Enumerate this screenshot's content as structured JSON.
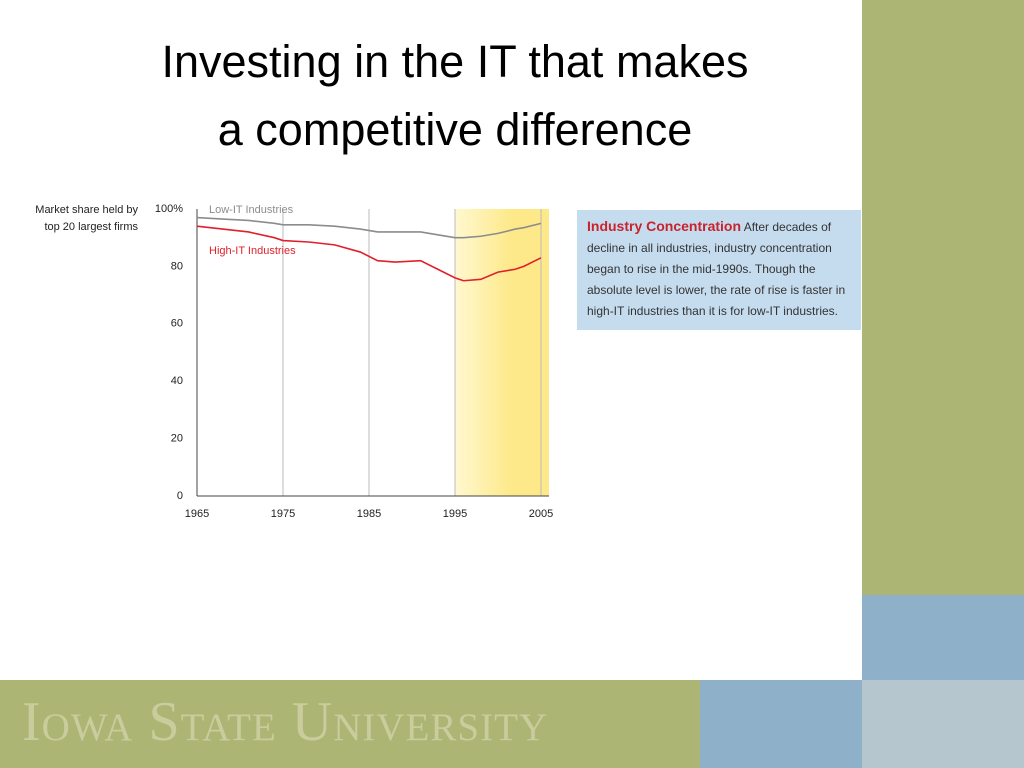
{
  "slide": {
    "title": [
      "Investing in the IT that makes",
      "a competitive difference"
    ],
    "footer": "Iowa State University",
    "note": {
      "heading": "Industry Concentration",
      "body": "After decades of decline in all industries, industry concentration began to rise in the mid-1990s. Though the absolute level is lower, the rate of rise is faster in high-IT industries than it is for low-IT industries."
    }
  },
  "chart_data": {
    "type": "line",
    "ylabel": [
      "Market share held by",
      "top 20 largest firms"
    ],
    "x": [
      1965,
      1968,
      1971,
      1974,
      1975,
      1978,
      1981,
      1984,
      1986,
      1988,
      1991,
      1993,
      1995,
      1996,
      1998,
      2000,
      2002,
      2003,
      2005
    ],
    "series": [
      {
        "name": "Low-IT Industries",
        "color": "#8c8c8c",
        "values": [
          97,
          96.5,
          96,
          95,
          94.5,
          94.5,
          94,
          93,
          92,
          92,
          92,
          91,
          90,
          90,
          90.5,
          91.5,
          93,
          93.5,
          95
        ]
      },
      {
        "name": "High-IT Industries",
        "color": "#e0202c",
        "values": [
          94,
          93,
          92,
          90,
          89,
          88.5,
          87.5,
          85,
          82,
          81.5,
          82,
          79,
          76,
          75,
          75.5,
          78,
          79,
          80,
          83
        ]
      }
    ],
    "xlim": [
      1965,
      2005
    ],
    "xticks": [
      1965,
      1975,
      1985,
      1995,
      2005
    ],
    "ylim": [
      0,
      100
    ],
    "yticks": [
      0,
      20,
      40,
      60,
      80,
      {
        "value": 100,
        "label": "100%"
      }
    ],
    "grid": "x",
    "highlight_x": [
      1995,
      2005
    ],
    "highlight_color": "#fde98a"
  }
}
